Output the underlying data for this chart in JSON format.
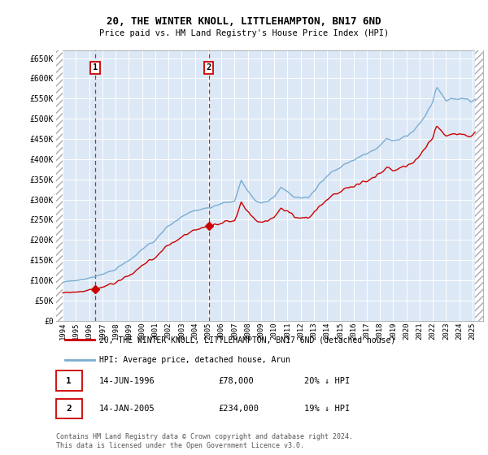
{
  "title": "20, THE WINTER KNOLL, LITTLEHAMPTON, BN17 6ND",
  "subtitle": "Price paid vs. HM Land Registry's House Price Index (HPI)",
  "legend_line1": "20, THE WINTER KNOLL, LITTLEHAMPTON, BN17 6ND (detached house)",
  "legend_line2": "HPI: Average price, detached house, Arun",
  "footnote": "Contains HM Land Registry data © Crown copyright and database right 2024.\nThis data is licensed under the Open Government Licence v3.0.",
  "sale1_date": "14-JUN-1996",
  "sale1_price": 78000,
  "sale1_label": "1",
  "sale1_hpi_text": "20% ↓ HPI",
  "sale1_year": 1996.45,
  "sale2_date": "14-JAN-2005",
  "sale2_price": 234000,
  "sale2_label": "2",
  "sale2_hpi_text": "19% ↓ HPI",
  "sale2_year": 2005.04,
  "red_line_color": "#cc0000",
  "blue_line_color": "#7aadd4",
  "background_color": "#dce8f5",
  "grid_color": "#c8d8e8",
  "ylim": [
    0,
    670000
  ],
  "ytick_values": [
    0,
    50000,
    100000,
    150000,
    200000,
    250000,
    300000,
    350000,
    400000,
    450000,
    500000,
    550000,
    600000,
    650000
  ],
  "ytick_labels": [
    "£0",
    "£50K",
    "£100K",
    "£150K",
    "£200K",
    "£250K",
    "£300K",
    "£350K",
    "£400K",
    "£450K",
    "£500K",
    "£550K",
    "£600K",
    "£650K"
  ],
  "xlim_start": 1993.5,
  "xlim_end": 2025.8,
  "xticks": [
    1994,
    1995,
    1996,
    1997,
    1998,
    1999,
    2000,
    2001,
    2002,
    2003,
    2004,
    2005,
    2006,
    2007,
    2008,
    2009,
    2010,
    2011,
    2012,
    2013,
    2014,
    2015,
    2016,
    2017,
    2018,
    2019,
    2020,
    2021,
    2022,
    2023,
    2024,
    2025
  ],
  "hpi_seed": 17,
  "red_seed": 99
}
